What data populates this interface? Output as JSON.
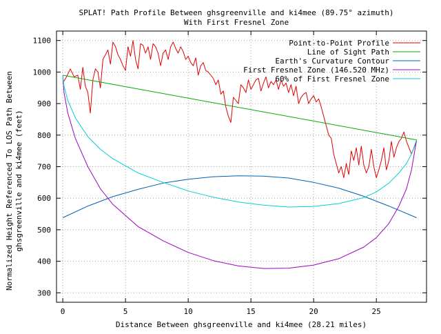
{
  "chart_data": {
    "type": "line",
    "title": "SPLAT! Path Profile Between ghsgreenville and ki4mee (89.75° azimuth)",
    "subtitle": "With First Fresnel Zone",
    "xlabel": "Distance Between ghsgreenville and ki4mee (28.21 miles)",
    "ylabel_line1": "Normalized Height Referenced To LOS Path Between",
    "ylabel_line2": "ghsgreenville and ki4mee (feet)",
    "xlim": [
      -0.5,
      29
    ],
    "ylim": [
      270,
      1130
    ],
    "xticks": [
      0,
      5,
      10,
      15,
      20,
      25
    ],
    "yticks": [
      300,
      400,
      500,
      600,
      700,
      800,
      900,
      1000,
      1100
    ],
    "grid": true,
    "legend_position": "top-right",
    "series": [
      {
        "name": "Point-to-Point Profile",
        "color": "#e00000",
        "points": [
          [
            0,
            965
          ],
          [
            0.3,
            985
          ],
          [
            0.6,
            1010
          ],
          [
            0.9,
            985
          ],
          [
            1.2,
            990
          ],
          [
            1.4,
            945
          ],
          [
            1.6,
            1015
          ],
          [
            1.8,
            955
          ],
          [
            2.0,
            935
          ],
          [
            2.2,
            870
          ],
          [
            2.4,
            975
          ],
          [
            2.6,
            1010
          ],
          [
            2.8,
            1000
          ],
          [
            3.0,
            950
          ],
          [
            3.2,
            1040
          ],
          [
            3.4,
            1055
          ],
          [
            3.6,
            1070
          ],
          [
            3.8,
            1025
          ],
          [
            4.0,
            1095
          ],
          [
            4.2,
            1080
          ],
          [
            4.4,
            1055
          ],
          [
            4.6,
            1040
          ],
          [
            4.8,
            1020
          ],
          [
            5.0,
            1005
          ],
          [
            5.2,
            1080
          ],
          [
            5.4,
            1050
          ],
          [
            5.6,
            1100
          ],
          [
            5.8,
            1040
          ],
          [
            6.0,
            1010
          ],
          [
            6.2,
            1090
          ],
          [
            6.4,
            1085
          ],
          [
            6.6,
            1060
          ],
          [
            6.8,
            1080
          ],
          [
            7.0,
            1040
          ],
          [
            7.2,
            1090
          ],
          [
            7.4,
            1080
          ],
          [
            7.6,
            1060
          ],
          [
            7.8,
            1020
          ],
          [
            8.0,
            1060
          ],
          [
            8.2,
            1070
          ],
          [
            8.4,
            1040
          ],
          [
            8.6,
            1080
          ],
          [
            8.8,
            1095
          ],
          [
            9.0,
            1075
          ],
          [
            9.2,
            1060
          ],
          [
            9.4,
            1080
          ],
          [
            9.6,
            1065
          ],
          [
            9.8,
            1040
          ],
          [
            10.0,
            1050
          ],
          [
            10.2,
            1030
          ],
          [
            10.4,
            1020
          ],
          [
            10.6,
            1045
          ],
          [
            10.8,
            990
          ],
          [
            11.0,
            1020
          ],
          [
            11.2,
            1030
          ],
          [
            11.4,
            1005
          ],
          [
            11.6,
            1000
          ],
          [
            11.8,
            990
          ],
          [
            12.0,
            980
          ],
          [
            12.2,
            960
          ],
          [
            12.4,
            975
          ],
          [
            12.6,
            930
          ],
          [
            12.8,
            940
          ],
          [
            13.0,
            890
          ],
          [
            13.2,
            860
          ],
          [
            13.4,
            840
          ],
          [
            13.6,
            920
          ],
          [
            13.8,
            910
          ],
          [
            14.0,
            900
          ],
          [
            14.2,
            960
          ],
          [
            14.4,
            950
          ],
          [
            14.6,
            935
          ],
          [
            14.8,
            975
          ],
          [
            15.0,
            945
          ],
          [
            15.2,
            960
          ],
          [
            15.4,
            975
          ],
          [
            15.6,
            980
          ],
          [
            15.8,
            940
          ],
          [
            16.0,
            965
          ],
          [
            16.2,
            985
          ],
          [
            16.4,
            950
          ],
          [
            16.6,
            970
          ],
          [
            16.8,
            960
          ],
          [
            17.0,
            975
          ],
          [
            17.2,
            945
          ],
          [
            17.4,
            975
          ],
          [
            17.6,
            955
          ],
          [
            17.8,
            965
          ],
          [
            18.0,
            935
          ],
          [
            18.2,
            960
          ],
          [
            18.4,
            925
          ],
          [
            18.6,
            955
          ],
          [
            18.8,
            900
          ],
          [
            19.0,
            920
          ],
          [
            19.2,
            930
          ],
          [
            19.4,
            935
          ],
          [
            19.6,
            900
          ],
          [
            19.8,
            915
          ],
          [
            20.0,
            925
          ],
          [
            20.2,
            905
          ],
          [
            20.4,
            915
          ],
          [
            20.6,
            890
          ],
          [
            20.8,
            860
          ],
          [
            21.0,
            830
          ],
          [
            21.2,
            800
          ],
          [
            21.4,
            790
          ],
          [
            21.6,
            740
          ],
          [
            21.8,
            710
          ],
          [
            22.0,
            680
          ],
          [
            22.2,
            700
          ],
          [
            22.4,
            665
          ],
          [
            22.6,
            710
          ],
          [
            22.8,
            675
          ],
          [
            23.0,
            750
          ],
          [
            23.2,
            720
          ],
          [
            23.4,
            760
          ],
          [
            23.6,
            705
          ],
          [
            23.8,
            765
          ],
          [
            24.0,
            705
          ],
          [
            24.2,
            680
          ],
          [
            24.4,
            700
          ],
          [
            24.6,
            755
          ],
          [
            24.8,
            700
          ],
          [
            25.0,
            665
          ],
          [
            25.2,
            690
          ],
          [
            25.4,
            720
          ],
          [
            25.6,
            760
          ],
          [
            25.8,
            690
          ],
          [
            26.0,
            720
          ],
          [
            26.2,
            780
          ],
          [
            26.4,
            730
          ],
          [
            26.6,
            760
          ],
          [
            26.8,
            780
          ],
          [
            27.0,
            790
          ],
          [
            27.2,
            810
          ],
          [
            27.4,
            780
          ],
          [
            27.6,
            760
          ],
          [
            27.8,
            740
          ],
          [
            28.0,
            760
          ],
          [
            28.21,
            780
          ]
        ]
      },
      {
        "name": "Line of Sight Path",
        "color": "#00aa00",
        "points": [
          [
            0,
            990
          ],
          [
            28.21,
            785
          ]
        ]
      },
      {
        "name": "Earth's Curvature Contour",
        "color": "#0060b0",
        "points": [
          [
            0,
            538
          ],
          [
            2,
            575
          ],
          [
            4,
            605
          ],
          [
            6,
            628
          ],
          [
            8,
            648
          ],
          [
            10,
            660
          ],
          [
            12,
            668
          ],
          [
            14,
            671
          ],
          [
            16,
            670
          ],
          [
            18,
            664
          ],
          [
            20,
            650
          ],
          [
            22,
            632
          ],
          [
            24,
            606
          ],
          [
            26,
            575
          ],
          [
            28.21,
            538
          ]
        ]
      },
      {
        "name": "First Fresnel Zone (146.520 MHz)",
        "color": "#a000c0",
        "points": [
          [
            0,
            990
          ],
          [
            0.1,
            935
          ],
          [
            0.4,
            870
          ],
          [
            1,
            790
          ],
          [
            2,
            700
          ],
          [
            3,
            630
          ],
          [
            4,
            580
          ],
          [
            6,
            510
          ],
          [
            8,
            465
          ],
          [
            10,
            428
          ],
          [
            12,
            402
          ],
          [
            14,
            385
          ],
          [
            16,
            377
          ],
          [
            18,
            378
          ],
          [
            20,
            388
          ],
          [
            22,
            408
          ],
          [
            24,
            445
          ],
          [
            25,
            475
          ],
          [
            26,
            520
          ],
          [
            26.8,
            575
          ],
          [
            27.4,
            630
          ],
          [
            27.8,
            690
          ],
          [
            28.21,
            785
          ]
        ]
      },
      {
        "name": "60% of First Fresnel Zone",
        "color": "#00d0d0",
        "points": [
          [
            0,
            990
          ],
          [
            0.1,
            955
          ],
          [
            0.4,
            910
          ],
          [
            1,
            855
          ],
          [
            2,
            795
          ],
          [
            3,
            755
          ],
          [
            4,
            725
          ],
          [
            6,
            680
          ],
          [
            8,
            650
          ],
          [
            10,
            623
          ],
          [
            12,
            603
          ],
          [
            14,
            588
          ],
          [
            16,
            578
          ],
          [
            18,
            572
          ],
          [
            20,
            574
          ],
          [
            22,
            583
          ],
          [
            24,
            602
          ],
          [
            25,
            620
          ],
          [
            26,
            648
          ],
          [
            26.8,
            680
          ],
          [
            27.4,
            710
          ],
          [
            27.8,
            740
          ],
          [
            28.21,
            785
          ]
        ]
      }
    ]
  }
}
